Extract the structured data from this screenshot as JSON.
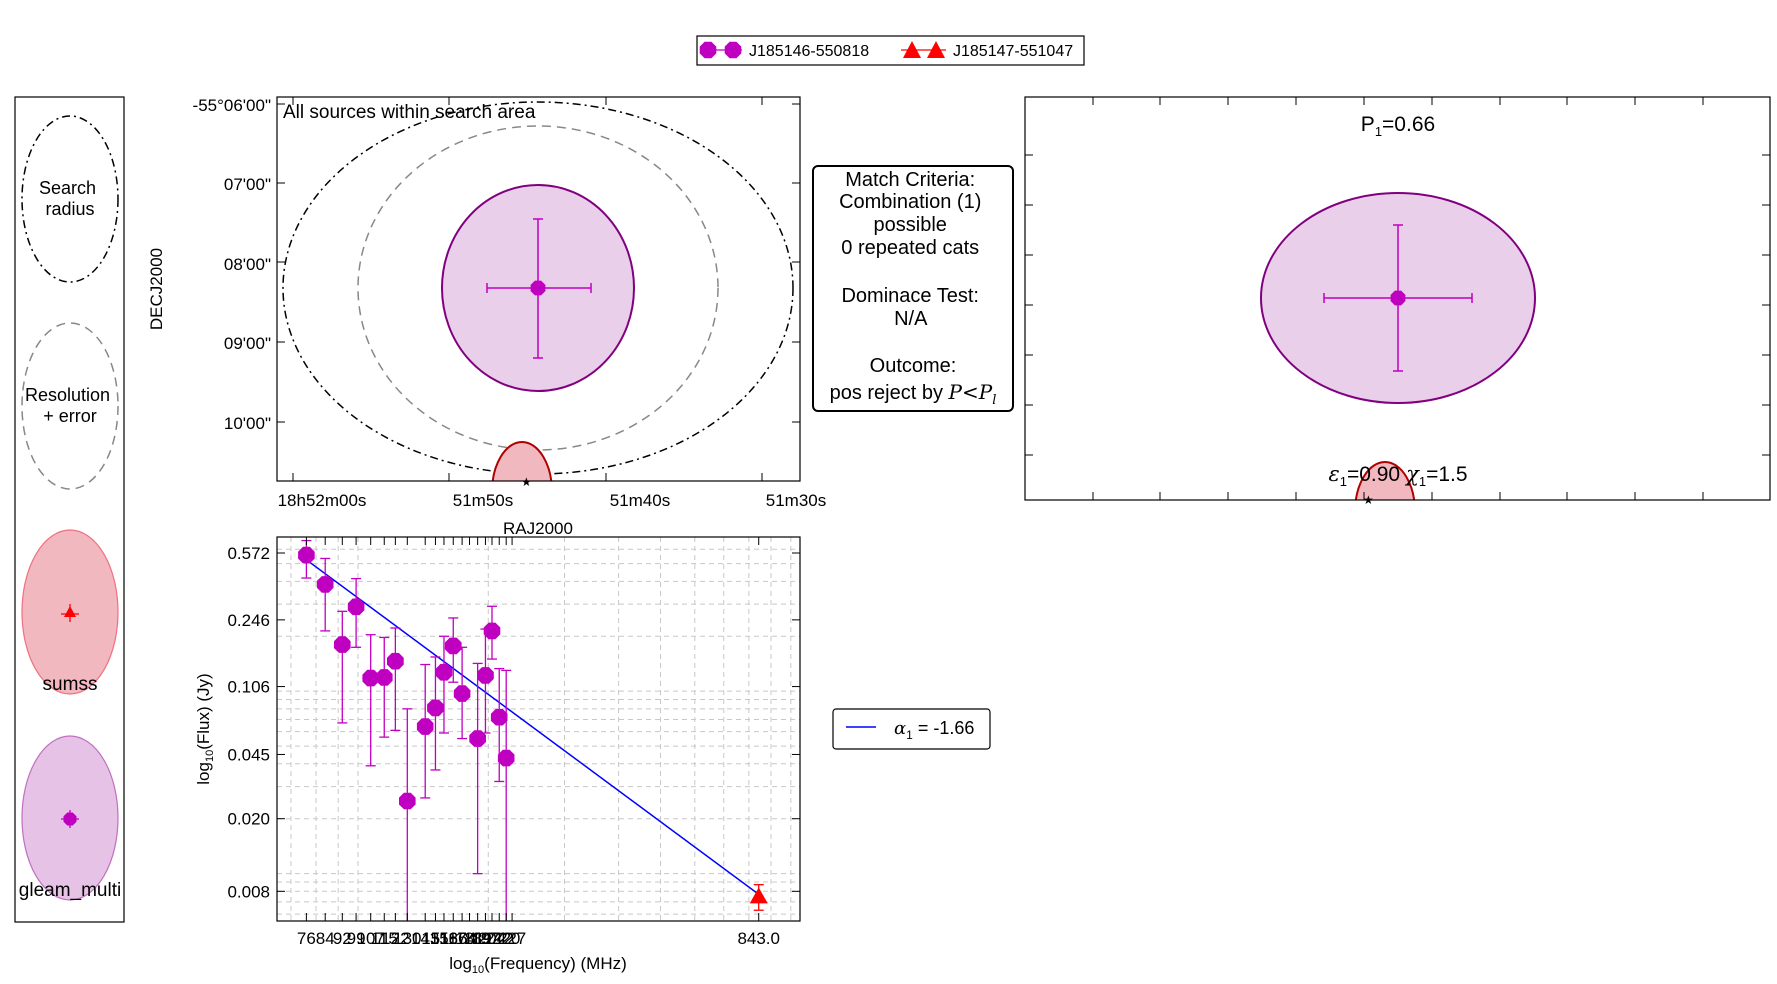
{
  "colors": {
    "gleam_fill": "#e9cfe9",
    "gleam_edge": "#800080",
    "gleam_marker": "#c000c0",
    "sumss_fill": "#f2b8c0",
    "sumss_edge": "#b00000",
    "sumss_marker": "#ff0000",
    "fit_line": "#0000ff"
  },
  "legend_top": {
    "entries": [
      {
        "label": "J185146-550818",
        "source": "gleam_multi"
      },
      {
        "label": "J185147-551047",
        "source": "sumss"
      }
    ]
  },
  "key_panel": {
    "items": [
      {
        "label": "Search\nradius",
        "style": "dashdot"
      },
      {
        "label": "Resolution\n+ error",
        "style": "dashed"
      },
      {
        "label": "sumss",
        "style": "sumss"
      },
      {
        "label": "gleam_multi",
        "style": "gleam"
      }
    ]
  },
  "sky_plot": {
    "title": "All sources within search area",
    "xlabel": "RAJ2000",
    "ylabel": "DECJ2000",
    "xticks": [
      "18h52m00s",
      "51m50s",
      "51m40s",
      "51m30s"
    ],
    "yticks": [
      "-55°06'00\"",
      "07'00\"",
      "08'00\"",
      "09'00\"",
      "10'00\""
    ]
  },
  "match_criteria": {
    "lines": [
      "Match Criteria:",
      "Combination (1)",
      "possible",
      "0 repeated cats",
      "",
      "Dominace Test:",
      "N/A",
      "",
      "Outcome:"
    ],
    "outcome_prefix": "pos reject by ",
    "outcome_math": "P<P",
    "outcome_sub": "l"
  },
  "combo_plot": {
    "prob_label": "P",
    "prob_sub": "1",
    "prob_value": "=0.66",
    "eps_label": "ε",
    "eps_sub": "1",
    "eps_value": "=0.90",
    "chi_label": "χ",
    "chi_sub": "1",
    "chi_value": "=1.5"
  },
  "sed_legend": {
    "symbol": "α",
    "sub": "1",
    "text": " = -1.66"
  },
  "chart_data": {
    "type": "scatter",
    "title": "",
    "xlabel": "log10(Frequency) (MHz)",
    "ylabel": "log10(Flux) (Jy)",
    "xscale": "log",
    "yscale": "log",
    "xlim": [
      65,
      1050
    ],
    "ylim": [
      0.0055,
      0.7
    ],
    "ytick_labels": [
      "0.572",
      "0.246",
      "0.106",
      "0.045",
      "0.020",
      "0.008"
    ],
    "xtick_labels": [
      "76",
      "84",
      "92",
      "99",
      "107",
      "115",
      "122",
      "130",
      "143",
      "151",
      "158",
      "166",
      "174",
      "181",
      "189",
      "197",
      "204",
      "212",
      "220",
      "227",
      "843.0"
    ],
    "series": [
      {
        "name": "gleam_multi",
        "marker": "octagon",
        "points": [
          {
            "x": 76,
            "y": 0.557,
            "err": [
              0.14,
              0.112
            ]
          },
          {
            "x": 84,
            "y": 0.385,
            "err": [
              0.171,
              0.149
            ]
          },
          {
            "x": 92,
            "y": 0.18,
            "err": [
              0.113,
              0.094
            ]
          },
          {
            "x": 99,
            "y": 0.29,
            "err": [
              0.116,
              0.124
            ]
          },
          {
            "x": 107,
            "y": 0.118,
            "err": [
              0.079,
              0.086
            ]
          },
          {
            "x": 115,
            "y": 0.119,
            "err": [
              0.063,
              0.078
            ]
          },
          {
            "x": 122,
            "y": 0.146,
            "err": [
              0.085,
              0.076
            ]
          },
          {
            "x": 130,
            "y": 0.025,
            "err": [
              0.024,
              0.055
            ]
          },
          {
            "x": 143,
            "y": 0.064,
            "err": [
              0.038,
              0.076
            ]
          },
          {
            "x": 151,
            "y": 0.081,
            "err": [
              0.044,
              0.073
            ]
          },
          {
            "x": 158,
            "y": 0.127,
            "err": [
              0.068,
              0.073
            ]
          },
          {
            "x": 166,
            "y": 0.177,
            "err": [
              0.065,
              0.075
            ]
          },
          {
            "x": 174,
            "y": 0.097,
            "err": [
              0.042,
              0.077
            ]
          },
          {
            "x": 189,
            "y": 0.055,
            "err": [
              0.045,
              0.087
            ]
          },
          {
            "x": 197,
            "y": 0.122,
            "err": [
              0.063,
              0.097
            ]
          },
          {
            "x": 204,
            "y": 0.214,
            "err": [
              0.064,
              0.078
            ]
          },
          {
            "x": 212,
            "y": 0.072,
            "err": [
              0.04,
              0.061
            ]
          },
          {
            "x": 220,
            "y": 0.043,
            "err": [
              0.043,
              0.087
            ]
          }
        ]
      },
      {
        "name": "sumss",
        "marker": "triangle",
        "points": [
          {
            "x": 843,
            "y": 0.0075,
            "err": [
              0.0012,
              0.0012
            ]
          }
        ]
      }
    ],
    "fit": {
      "label": "α1 = -1.66",
      "slope": -1.66,
      "x": [
        76,
        843
      ],
      "y": [
        0.525,
        0.0077
      ]
    }
  }
}
